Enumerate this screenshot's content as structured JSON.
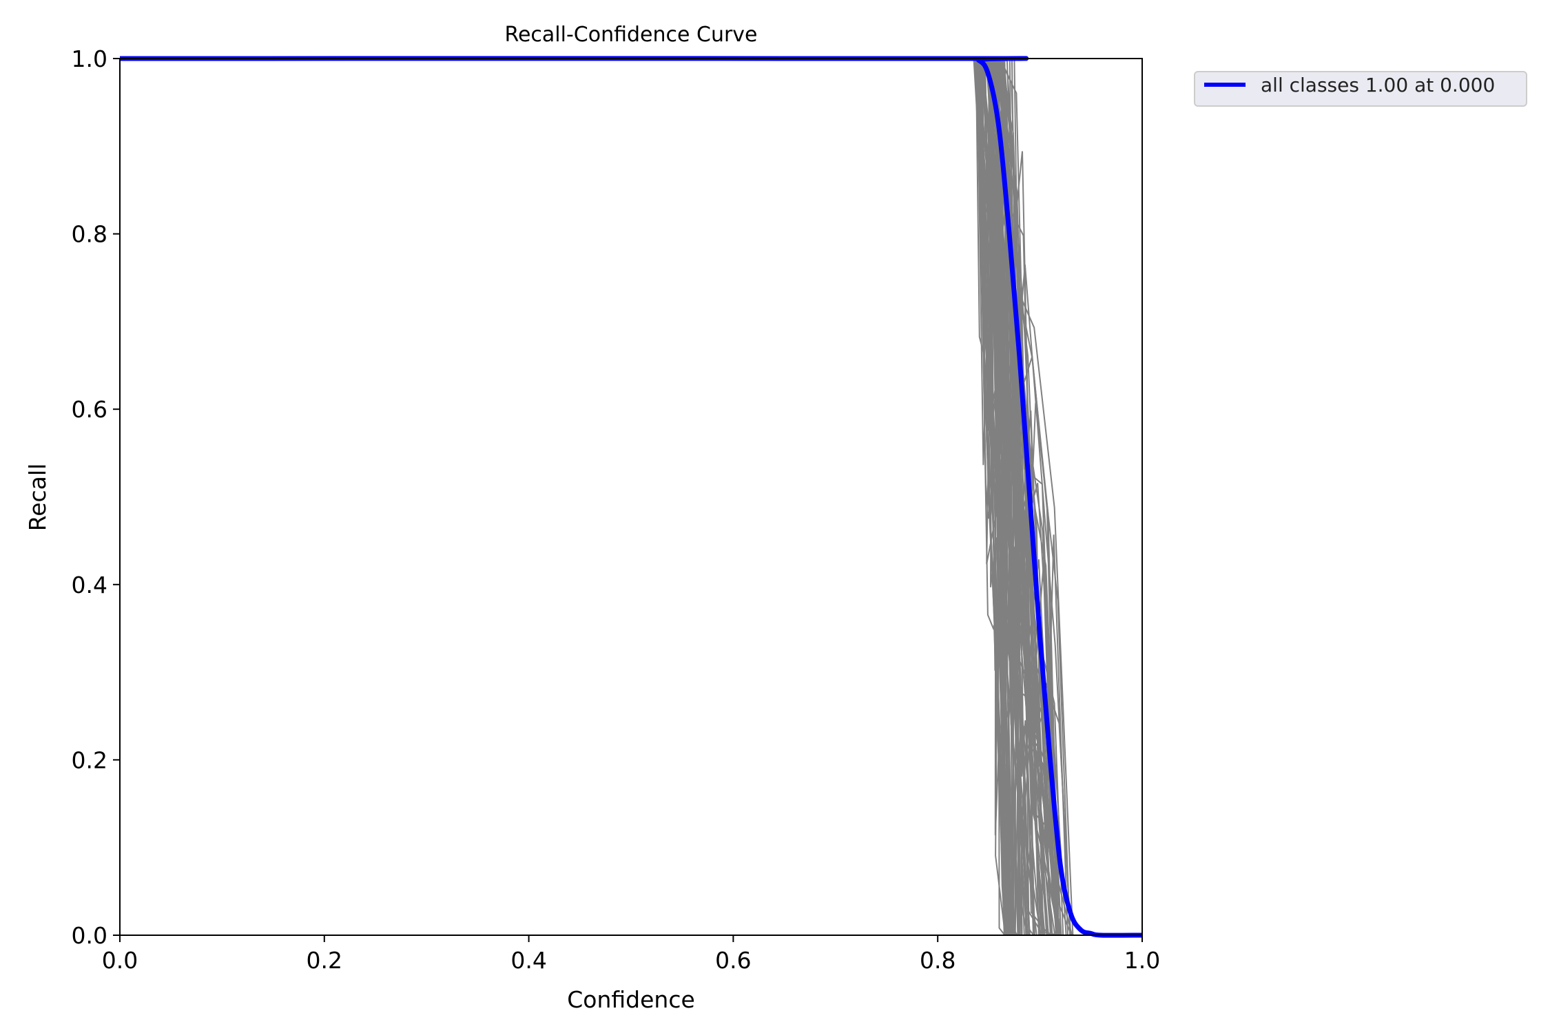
{
  "chart_data": {
    "type": "line",
    "title": "Recall-Confidence Curve",
    "xlabel": "Confidence",
    "ylabel": "Recall",
    "xlim": [
      0.0,
      1.0
    ],
    "ylim": [
      0.0,
      1.0
    ],
    "x_ticks": [
      "0.0",
      "0.2",
      "0.4",
      "0.6",
      "0.8",
      "1.0"
    ],
    "y_ticks": [
      "0.0",
      "0.2",
      "0.4",
      "0.6",
      "0.8",
      "1.0"
    ],
    "grid": false,
    "legend_position": "outside-top-right",
    "colors": {
      "class_curves": "#808080",
      "all_classes": "#0000ff"
    },
    "series": [
      {
        "name": "all classes 1.00 at 0.000",
        "x": [
          0.0,
          0.82,
          0.84,
          0.85,
          0.86,
          0.87,
          0.88,
          0.89,
          0.9,
          0.91,
          0.92,
          0.93,
          0.94,
          0.95,
          0.96,
          1.0
        ],
        "y": [
          1.0,
          1.0,
          0.998,
          0.98,
          0.92,
          0.8,
          0.66,
          0.5,
          0.34,
          0.2,
          0.08,
          0.025,
          0.006,
          0.002,
          0.0,
          0.0
        ]
      }
    ]
  }
}
